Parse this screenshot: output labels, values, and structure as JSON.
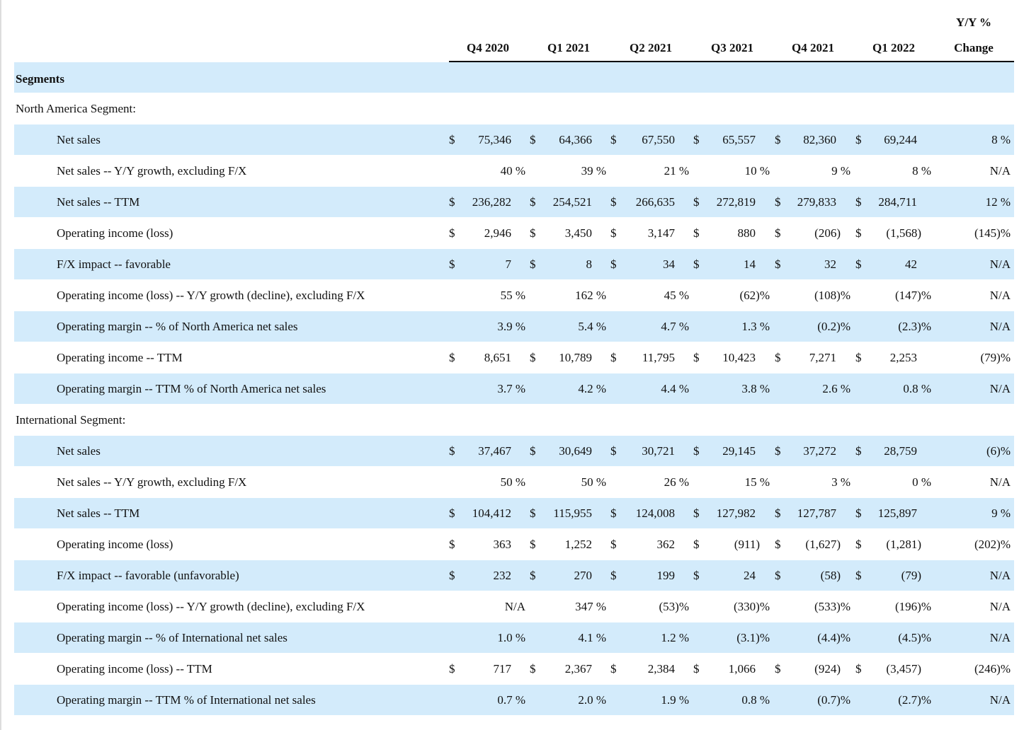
{
  "header": {
    "columns": [
      "Q4 2020",
      "Q1 2021",
      "Q2 2021",
      "Q3 2021",
      "Q4 2021",
      "Q1 2022"
    ],
    "change": [
      "Y/Y %",
      "Change"
    ]
  },
  "title": "Segments",
  "sections": [
    {
      "title": "North America Segment:",
      "rows": [
        {
          "label": "Net sales",
          "currency": "$",
          "cells": [
            "75,346",
            "64,366",
            "67,550",
            "65,557",
            "82,360",
            "69,244"
          ],
          "change": "8 %"
        },
        {
          "label": "Net sales -- Y/Y growth, excluding F/X",
          "cells": [
            "40 %",
            "39 %",
            "21 %",
            "10 %",
            "9 %",
            "8 %"
          ],
          "change": "N/A"
        },
        {
          "label": "Net sales -- TTM",
          "currency": "$",
          "cells": [
            "236,282",
            "254,521",
            "266,635",
            "272,819",
            "279,833",
            "284,711"
          ],
          "change": "12 %"
        },
        {
          "label": "Operating income (loss)",
          "currency": "$",
          "cells": [
            "2,946",
            "3,450",
            "3,147",
            "880",
            "(206)",
            "(1,568)"
          ],
          "change": "(145)%"
        },
        {
          "label": "F/X impact -- favorable",
          "currency": "$",
          "cells": [
            "7",
            "8",
            "34",
            "14",
            "32",
            "42"
          ],
          "change": "N/A"
        },
        {
          "label": "Operating income (loss) -- Y/Y growth (decline), excluding F/X",
          "cells": [
            "55 %",
            "162 %",
            "45 %",
            "(62)%",
            "(108)%",
            "(147)%"
          ],
          "change": "N/A"
        },
        {
          "label": "Operating margin -- % of North America net sales",
          "cells": [
            "3.9 %",
            "5.4 %",
            "4.7 %",
            "1.3 %",
            "(0.2)%",
            "(2.3)%"
          ],
          "change": "N/A"
        },
        {
          "label": "Operating income -- TTM",
          "currency": "$",
          "cells": [
            "8,651",
            "10,789",
            "11,795",
            "10,423",
            "7,271",
            "2,253"
          ],
          "change": "(79)%"
        },
        {
          "label": "Operating margin -- TTM % of North America net sales",
          "cells": [
            "3.7 %",
            "4.2 %",
            "4.4 %",
            "3.8 %",
            "2.6 %",
            "0.8 %"
          ],
          "change": "N/A"
        }
      ]
    },
    {
      "title": "International Segment:",
      "rows": [
        {
          "label": "Net sales",
          "currency": "$",
          "cells": [
            "37,467",
            "30,649",
            "30,721",
            "29,145",
            "37,272",
            "28,759"
          ],
          "change": "(6)%"
        },
        {
          "label": "Net sales -- Y/Y growth, excluding F/X",
          "cells": [
            "50 %",
            "50 %",
            "26 %",
            "15 %",
            "3 %",
            "0 %"
          ],
          "change": "N/A"
        },
        {
          "label": "Net sales -- TTM",
          "currency": "$",
          "cells": [
            "104,412",
            "115,955",
            "124,008",
            "127,982",
            "127,787",
            "125,897"
          ],
          "change": "9 %"
        },
        {
          "label": "Operating income (loss)",
          "currency": "$",
          "cells": [
            "363",
            "1,252",
            "362",
            "(911)",
            "(1,627)",
            "(1,281)"
          ],
          "change": "(202)%"
        },
        {
          "label": "F/X impact -- favorable (unfavorable)",
          "currency": "$",
          "cells": [
            "232",
            "270",
            "199",
            "24",
            "(58)",
            "(79)"
          ],
          "change": "N/A"
        },
        {
          "label": "Operating income (loss) -- Y/Y growth (decline), excluding F/X",
          "cells": [
            "N/A",
            "347 %",
            "(53)%",
            "(330)%",
            "(533)%",
            "(196)%"
          ],
          "change": "N/A"
        },
        {
          "label": "Operating margin -- % of International net sales",
          "cells": [
            "1.0 %",
            "4.1 %",
            "1.2 %",
            "(3.1)%",
            "(4.4)%",
            "(4.5)%"
          ],
          "change": "N/A"
        },
        {
          "label": "Operating income (loss) -- TTM",
          "currency": "$",
          "cells": [
            "717",
            "2,367",
            "2,384",
            "1,066",
            "(924)",
            "(3,457)"
          ],
          "change": "(246)%"
        },
        {
          "label": "Operating margin -- TTM % of International net sales",
          "cells": [
            "0.7 %",
            "2.0 %",
            "1.9 %",
            "0.8 %",
            "(0.7)%",
            "(2.7)%"
          ],
          "change": "N/A"
        }
      ]
    }
  ]
}
